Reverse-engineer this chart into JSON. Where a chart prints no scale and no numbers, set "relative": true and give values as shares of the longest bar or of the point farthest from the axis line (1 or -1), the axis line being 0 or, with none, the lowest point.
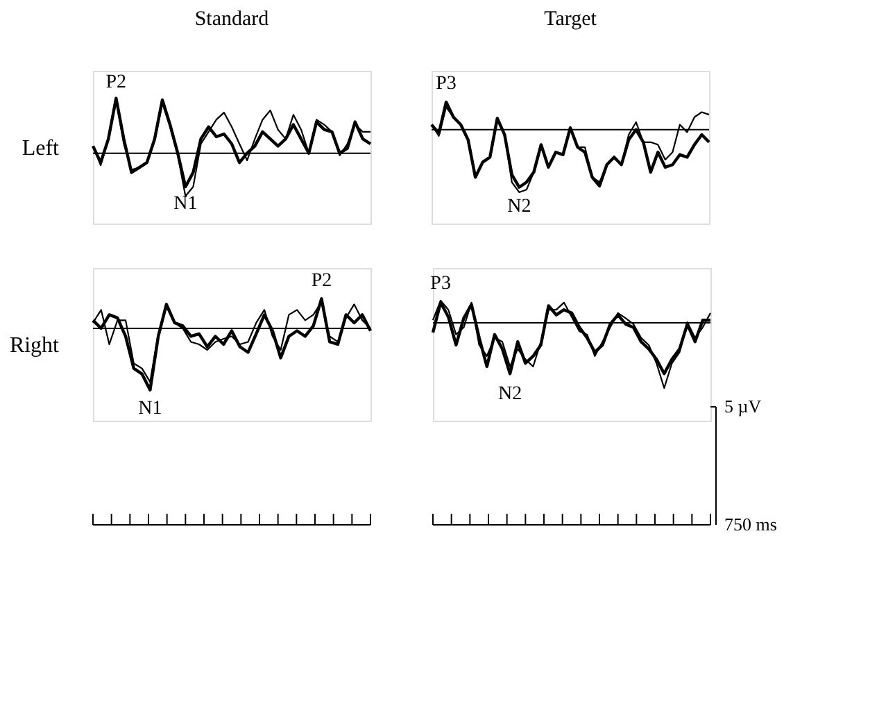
{
  "chart_data": [
    {
      "type": "line",
      "title": "Standard",
      "ylabel": "Left",
      "relative": true,
      "line_style": "solid",
      "categories": [
        null,
        null,
        null,
        null,
        null,
        null,
        null,
        null,
        null,
        null,
        null,
        null,
        null,
        null,
        null,
        null,
        null,
        null,
        null,
        null,
        null,
        null,
        null,
        null,
        null,
        null,
        null,
        null,
        null,
        null,
        null,
        null,
        null,
        null,
        null,
        null,
        null
      ],
      "series": [
        {
          "color": "#000000",
          "values": [
            0.13,
            -0.17,
            0.26,
            1.0,
            0.26,
            -0.35,
            -0.26,
            -0.17,
            0.26,
            0.97,
            0.52,
            0,
            -0.61,
            -0.35,
            0.26,
            0.48,
            0.3,
            0.35,
            0.17,
            -0.17,
            0,
            0.13,
            0.39,
            0.26,
            0.13,
            0.26,
            0.52,
            0.26,
            0,
            0.57,
            0.43,
            0.39,
            0,
            0.09,
            0.57,
            0.26,
            0.17
          ]
        },
        {
          "color": "#000000",
          "values": [
            0.13,
            -0.22,
            0.26,
            0.97,
            0.17,
            -0.3,
            -0.26,
            -0.17,
            0.22,
            0.91,
            0.48,
            -0.04,
            -0.78,
            -0.61,
            0.17,
            0.39,
            0.61,
            0.74,
            0.48,
            0.17,
            -0.13,
            0.26,
            0.61,
            0.78,
            0.43,
            0.26,
            0.7,
            0.43,
            0,
            0.61,
            0.52,
            0.39,
            -0.04,
            0.17,
            0.52,
            0.39,
            0.39
          ]
        }
      ],
      "annotations": [
        "P2",
        "N1"
      ]
    },
    {
      "type": "line",
      "title": "Target",
      "relative": true,
      "line_style": "solid",
      "categories": [
        null,
        null,
        null,
        null,
        null,
        null,
        null,
        null,
        null,
        null,
        null,
        null,
        null,
        null,
        null,
        null,
        null,
        null,
        null,
        null,
        null,
        null,
        null,
        null,
        null,
        null,
        null,
        null,
        null,
        null,
        null,
        null,
        null,
        null,
        null,
        null,
        null,
        null,
        null
      ],
      "series": [
        {
          "color": "#000000",
          "values": [
            0.08,
            -0.06,
            0.44,
            0.2,
            0.08,
            -0.16,
            -0.76,
            -0.52,
            -0.44,
            0.18,
            -0.08,
            -0.72,
            -0.92,
            -0.84,
            -0.68,
            -0.24,
            -0.6,
            -0.36,
            -0.4,
            0.03,
            -0.28,
            -0.36,
            -0.76,
            -0.9,
            -0.56,
            -0.44,
            -0.56,
            -0.16,
            0,
            -0.2,
            -0.68,
            -0.36,
            -0.6,
            -0.56,
            -0.4,
            -0.44,
            -0.24,
            -0.08,
            -0.2
          ]
        },
        {
          "color": "#000000",
          "values": [
            0.08,
            -0.1,
            0.36,
            0.2,
            0.08,
            -0.16,
            -0.76,
            -0.52,
            -0.44,
            0.18,
            -0.08,
            -0.84,
            -1.0,
            -0.96,
            -0.68,
            -0.24,
            -0.6,
            -0.36,
            -0.4,
            0.03,
            -0.28,
            -0.28,
            -0.76,
            -0.84,
            -0.56,
            -0.44,
            -0.56,
            -0.08,
            0.12,
            -0.2,
            -0.2,
            -0.24,
            -0.48,
            -0.36,
            0.08,
            -0.04,
            0.2,
            0.28,
            0.24
          ]
        }
      ],
      "annotations": [
        "P3",
        "N2"
      ]
    },
    {
      "type": "line",
      "ylabel": "Right",
      "relative": true,
      "line_style": "solid",
      "categories": [
        null,
        null,
        null,
        null,
        null,
        null,
        null,
        null,
        null,
        null,
        null,
        null,
        null,
        null,
        null,
        null,
        null,
        null,
        null,
        null,
        null,
        null,
        null,
        null,
        null,
        null,
        null,
        null,
        null,
        null,
        null,
        null,
        null,
        null,
        null
      ],
      "series": [
        {
          "color": "#000000",
          "values": [
            0.13,
            0,
            0.22,
            0.17,
            -0.13,
            -0.65,
            -0.74,
            -1.0,
            -0.13,
            0.39,
            0.09,
            0.04,
            -0.13,
            -0.09,
            -0.3,
            -0.13,
            -0.26,
            -0.04,
            -0.3,
            -0.39,
            -0.09,
            0.22,
            -0.04,
            -0.48,
            -0.13,
            -0.04,
            -0.13,
            0.04,
            0.48,
            -0.22,
            -0.26,
            0.22,
            0.09,
            0.22,
            -0.04
          ]
        },
        {
          "color": "#000000",
          "values": [
            0.09,
            0.3,
            -0.26,
            0.13,
            0.13,
            -0.57,
            -0.65,
            -0.87,
            -0.09,
            0.35,
            0.09,
            0,
            -0.22,
            -0.26,
            -0.35,
            -0.22,
            -0.17,
            -0.13,
            -0.26,
            -0.22,
            0.09,
            0.3,
            -0.13,
            -0.35,
            0.22,
            0.3,
            0.13,
            0.22,
            0.43,
            -0.13,
            -0.22,
            0.17,
            0.39,
            0.13,
            0
          ]
        }
      ],
      "annotations": [
        "P2",
        "N1"
      ]
    },
    {
      "type": "line",
      "relative": true,
      "line_style": "solid",
      "categories": [
        null,
        null,
        null,
        null,
        null,
        null,
        null,
        null,
        null,
        null,
        null,
        null,
        null,
        null,
        null,
        null,
        null,
        null,
        null,
        null,
        null,
        null,
        null,
        null,
        null,
        null,
        null,
        null,
        null,
        null,
        null,
        null,
        null,
        null,
        null,
        null,
        null
      ],
      "series": [
        {
          "color": "#000000",
          "values": [
            -0.15,
            0.31,
            0.09,
            -0.34,
            0.07,
            0.28,
            -0.23,
            -0.67,
            -0.18,
            -0.4,
            -0.78,
            -0.29,
            -0.62,
            -0.51,
            -0.34,
            0.26,
            0.12,
            0.2,
            0.15,
            -0.07,
            -0.23,
            -0.45,
            -0.34,
            -0.02,
            0.12,
            -0.02,
            -0.07,
            -0.29,
            -0.4,
            -0.56,
            -0.78,
            -0.56,
            -0.4,
            -0.02,
            -0.29,
            0.04,
            0.04
          ]
        },
        {
          "color": "#000000",
          "values": [
            0.04,
            0.34,
            0.2,
            -0.18,
            -0.07,
            0.31,
            -0.34,
            -0.51,
            -0.23,
            -0.29,
            -0.67,
            -0.4,
            -0.56,
            -0.67,
            -0.29,
            0.2,
            0.2,
            0.31,
            0.09,
            -0.13,
            -0.18,
            -0.51,
            -0.29,
            -0.07,
            0.15,
            0.07,
            -0.02,
            -0.23,
            -0.34,
            -0.62,
            -1.0,
            -0.62,
            -0.45,
            0.01,
            -0.23,
            -0.07,
            0.15
          ]
        }
      ],
      "annotations": [
        "P3",
        "N2",
        "5 µV",
        "750 ms"
      ]
    }
  ]
}
